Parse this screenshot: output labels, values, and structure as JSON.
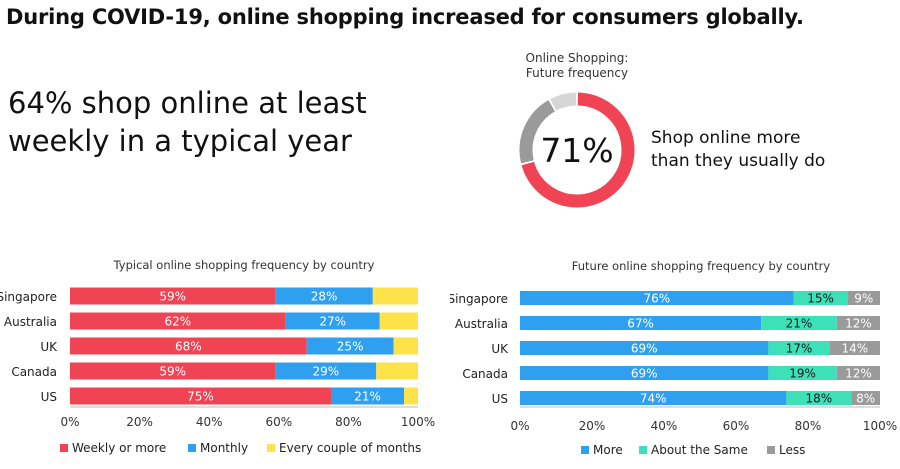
{
  "headline": "During COVID-19, online shopping increased for consumers globally.",
  "stat": {
    "line1": "64% shop online at least",
    "line2": "weekly in a typical year"
  },
  "donut": {
    "title_line1": "Online Shopping:",
    "title_line2": "Future frequency",
    "center_label": "71%",
    "caption_line1": "Shop online more",
    "caption_line2": "than they usually do"
  },
  "colors": {
    "red": "#f04455",
    "blue": "#2f9fef",
    "yellow": "#fde24a",
    "teal": "#3ee0b8",
    "gray": "#9a9a9a",
    "light_gray": "#d6d6d6"
  },
  "chart_data": [
    {
      "type": "pie",
      "variant": "donut",
      "values": [
        71,
        21,
        8
      ],
      "colors": [
        "#f04455",
        "#9a9a9a",
        "#d6d6d6"
      ]
    },
    {
      "type": "bar",
      "orientation": "horizontal",
      "stacked": true,
      "title": "Typical online shopping frequency by country",
      "categories": [
        "Singapore",
        "Australia",
        "UK",
        "Canada",
        "US"
      ],
      "series": [
        {
          "name": "Weekly or more",
          "color": "#f04455",
          "values": [
            59,
            62,
            68,
            59,
            75
          ],
          "labels": [
            "59%",
            "62%",
            "68%",
            "59%",
            "75%"
          ]
        },
        {
          "name": "Monthly",
          "color": "#2f9fef",
          "values": [
            28,
            27,
            25,
            29,
            21
          ],
          "labels": [
            "28%",
            "27%",
            "25%",
            "29%",
            "21%"
          ]
        },
        {
          "name": "Every couple of months",
          "color": "#fde24a",
          "values": [
            13,
            11,
            7,
            12,
            4
          ],
          "labels": [
            "",
            "",
            "",
            "",
            ""
          ]
        }
      ],
      "xlim": [
        0,
        100
      ],
      "xticks": [
        "0%",
        "20%",
        "40%",
        "60%",
        "80%",
        "100%"
      ],
      "legend": "bottom",
      "grid": false
    },
    {
      "type": "bar",
      "orientation": "horizontal",
      "stacked": true,
      "title": "Future online shopping frequency by country",
      "categories": [
        "Singapore",
        "Australia",
        "UK",
        "Canada",
        "US"
      ],
      "series": [
        {
          "name": "More",
          "color": "#2f9fef",
          "values": [
            76,
            67,
            69,
            69,
            74
          ],
          "labels": [
            "76%",
            "67%",
            "69%",
            "69%",
            "74%"
          ]
        },
        {
          "name": "About the Same",
          "color": "#3ee0b8",
          "values": [
            15,
            21,
            17,
            19,
            18
          ],
          "labels": [
            "15%",
            "21%",
            "17%",
            "19%",
            "18%"
          ]
        },
        {
          "name": "Less",
          "color": "#9a9a9a",
          "values": [
            9,
            12,
            14,
            12,
            8
          ],
          "labels": [
            "9%",
            "12%",
            "14%",
            "12%",
            "8%"
          ]
        }
      ],
      "xlim": [
        0,
        100
      ],
      "xticks": [
        "0%",
        "20%",
        "40%",
        "60%",
        "80%",
        "100%"
      ],
      "legend": "bottom",
      "grid": false
    }
  ]
}
